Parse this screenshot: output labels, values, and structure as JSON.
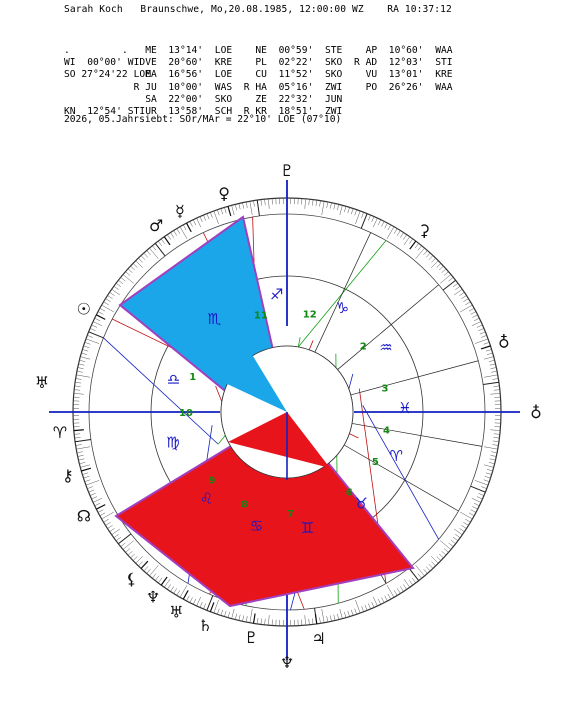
{
  "header": {
    "name": "Sarah Koch",
    "place": "Braunschwe,",
    "date": "Mo,20.08.1985, 12:00:00 WZ",
    "ra": "RA 10:37:12"
  },
  "table": {
    "rows": [
      [
        {
          "c": 0,
          "t": "."
        },
        {
          "c": 10,
          "t": "."
        },
        {
          "c": 14,
          "t": "ME"
        },
        {
          "c": 18,
          "t": "13°14'"
        },
        {
          "c": 26,
          "t": "LOE"
        },
        {
          "c": 33,
          "t": "NE"
        },
        {
          "c": 37,
          "t": "00°59'"
        },
        {
          "c": 45,
          "t": "STE"
        },
        {
          "c": 52,
          "t": "AP"
        },
        {
          "c": 56,
          "t": "10°60'"
        },
        {
          "c": 64,
          "t": "WAA"
        }
      ],
      [
        {
          "c": 0,
          "t": "WI"
        },
        {
          "c": 4,
          "t": "00°00'"
        },
        {
          "c": 11,
          "t": "WID"
        },
        {
          "c": 14,
          "t": "VE"
        },
        {
          "c": 18,
          "t": "20°60'"
        },
        {
          "c": 26,
          "t": "KRE"
        },
        {
          "c": 33,
          "t": "PL"
        },
        {
          "c": 37,
          "t": "02°22'"
        },
        {
          "c": 45,
          "t": "SKO"
        },
        {
          "c": 50,
          "t": "R"
        },
        {
          "c": 52,
          "t": "AD"
        },
        {
          "c": 56,
          "t": "12°03'"
        },
        {
          "c": 64,
          "t": "STI"
        }
      ],
      [
        {
          "c": 0,
          "t": "SO"
        },
        {
          "c": 3,
          "t": "27°24'22"
        },
        {
          "c": 12,
          "t": "LOE"
        },
        {
          "c": 14,
          "t": "MA"
        },
        {
          "c": 18,
          "t": "16°56'"
        },
        {
          "c": 26,
          "t": "LOE"
        },
        {
          "c": 33,
          "t": "CU"
        },
        {
          "c": 37,
          "t": "11°52'"
        },
        {
          "c": 45,
          "t": "SKO"
        },
        {
          "c": 52,
          "t": "VU"
        },
        {
          "c": 56,
          "t": "13°01'"
        },
        {
          "c": 64,
          "t": "KRE"
        }
      ],
      [
        {
          "c": 12,
          "t": "R"
        },
        {
          "c": 14,
          "t": "JU"
        },
        {
          "c": 18,
          "t": "10°00'"
        },
        {
          "c": 26,
          "t": "WAS"
        },
        {
          "c": 31,
          "t": "R"
        },
        {
          "c": 33,
          "t": "HA"
        },
        {
          "c": 37,
          "t": "05°16'"
        },
        {
          "c": 45,
          "t": "ZWI"
        },
        {
          "c": 52,
          "t": "PO"
        },
        {
          "c": 56,
          "t": "26°26'"
        },
        {
          "c": 64,
          "t": "WAA"
        }
      ],
      [
        {
          "c": 14,
          "t": "SA"
        },
        {
          "c": 18,
          "t": "22°00'"
        },
        {
          "c": 26,
          "t": "SKO"
        },
        {
          "c": 33,
          "t": "ZE"
        },
        {
          "c": 37,
          "t": "22°32'"
        },
        {
          "c": 45,
          "t": "JUN"
        }
      ],
      [
        {
          "c": 0,
          "t": "KN"
        },
        {
          "c": 4,
          "t": "12°54'"
        },
        {
          "c": 11,
          "t": "STI"
        },
        {
          "c": 14,
          "t": "UR"
        },
        {
          "c": 18,
          "t": "13°58'"
        },
        {
          "c": 26,
          "t": "SCH"
        },
        {
          "c": 31,
          "t": "R"
        },
        {
          "c": 33,
          "t": "KR"
        },
        {
          "c": 37,
          "t": "18°51'"
        },
        {
          "c": 45,
          "t": "ZWI"
        }
      ]
    ]
  },
  "footer": "2026, 05.Jahrsiebt: SOr/MAr = 22°10' LOE (07°10)",
  "wheel": {
    "signs": [
      {
        "g": "♋",
        "deg": 255
      },
      {
        "g": "♌",
        "deg": 227
      },
      {
        "g": "♍",
        "deg": 195
      },
      {
        "g": "♎",
        "deg": 164
      },
      {
        "g": "♏",
        "deg": 128
      },
      {
        "g": "♐",
        "deg": 95
      },
      {
        "g": "♑",
        "deg": 62
      },
      {
        "g": "♒",
        "deg": 33
      },
      {
        "g": "♓",
        "deg": 2
      },
      {
        "g": "♈",
        "deg": -22
      },
      {
        "g": "♉",
        "deg": -51
      },
      {
        "g": "♊",
        "deg": -80
      }
    ],
    "houses": [
      {
        "n": "1",
        "deg": 159
      },
      {
        "n": "2",
        "deg": 41
      },
      {
        "n": "3",
        "deg": 14
      },
      {
        "n": "4",
        "deg": -10
      },
      {
        "n": "5",
        "deg": -29
      },
      {
        "n": "6",
        "deg": -52
      },
      {
        "n": "7",
        "deg": -88
      },
      {
        "n": "8",
        "deg": -115
      },
      {
        "n": "9",
        "deg": -138
      },
      {
        "n": "10",
        "deg": 180
      },
      {
        "n": "11",
        "deg": 105
      },
      {
        "n": "12",
        "deg": 77
      }
    ],
    "planets": [
      {
        "g": "☉",
        "deg": 153
      },
      {
        "g": "☿",
        "deg": 118
      },
      {
        "g": "♀",
        "deg": 106
      },
      {
        "g": "♂",
        "deg": 125
      },
      {
        "g": "♃",
        "deg": 278
      },
      {
        "g": "♄",
        "deg": 249
      },
      {
        "g": "♅",
        "deg": 241
      },
      {
        "g": "♆",
        "deg": 234
      },
      {
        "g": "♇",
        "deg": 261
      },
      {
        "g": "☊",
        "deg": 207
      },
      {
        "g": "⚷",
        "deg": 196
      },
      {
        "g": "⚳",
        "deg": 53
      },
      {
        "g": "♁",
        "deg": 18
      },
      {
        "g": "⚸",
        "deg": 227
      },
      {
        "g": "♈",
        "deg": 185
      }
    ],
    "axes": {
      "asc": "♁",
      "mc": "♇",
      "dsc": "♅",
      "ic": "♆"
    }
  },
  "colors": {
    "blue_sector": "#1aa6e8",
    "red_sector": "#e8141c",
    "sector_edge": "#a040c0",
    "axis": "#1020c0",
    "sign_glyph": "#1818c8",
    "house_num": "#118811"
  }
}
